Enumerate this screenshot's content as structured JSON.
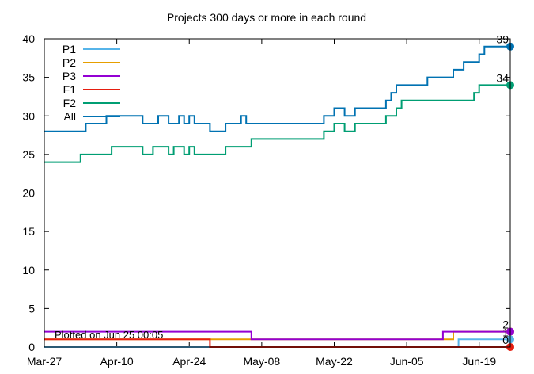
{
  "chart_data": {
    "type": "line",
    "title": "Projects 300 days or more in each round",
    "footnote": "Plotted on Jun 25 00:05",
    "x_start": "Mar-27",
    "x_end": "Jun-25",
    "x_ticks": [
      "Mar-27",
      "Apr-10",
      "Apr-24",
      "May-08",
      "May-22",
      "Jun-05",
      "Jun-19"
    ],
    "ylim": [
      0,
      40
    ],
    "y_ticks": [
      0,
      5,
      10,
      15,
      20,
      25,
      30,
      35,
      40
    ],
    "step": true,
    "legend_position": "top-left",
    "series": [
      {
        "name": "P1",
        "color": "#56b4e9",
        "end_label": "1",
        "points": [
          [
            "Mar-27",
            0
          ],
          [
            "Jun-15",
            1
          ],
          [
            "Jun-25",
            1
          ]
        ]
      },
      {
        "name": "P2",
        "color": "#e69f00",
        "end_label": "",
        "points": [
          [
            "Mar-27",
            1
          ],
          [
            "Apr-28",
            1
          ],
          [
            "Jun-14",
            2
          ],
          [
            "Jun-25",
            2
          ]
        ]
      },
      {
        "name": "P3",
        "color": "#9400d3",
        "end_label": "2",
        "points": [
          [
            "Mar-27",
            2
          ],
          [
            "May-06",
            1
          ],
          [
            "Jun-12",
            2
          ],
          [
            "Jun-25",
            2
          ]
        ]
      },
      {
        "name": "F1",
        "color": "#e51e10",
        "end_label": "0",
        "points": [
          [
            "Mar-27",
            1
          ],
          [
            "Apr-28",
            0
          ],
          [
            "Jun-25",
            0
          ]
        ]
      },
      {
        "name": "F2",
        "color": "#009e73",
        "end_label": "34",
        "points": [
          [
            "Mar-27",
            24
          ],
          [
            "Apr-03",
            25
          ],
          [
            "Apr-09",
            26
          ],
          [
            "Apr-15",
            25
          ],
          [
            "Apr-17",
            26
          ],
          [
            "Apr-20",
            25
          ],
          [
            "Apr-21",
            26
          ],
          [
            "Apr-23",
            25
          ],
          [
            "Apr-24",
            26
          ],
          [
            "Apr-25",
            25
          ],
          [
            "May-01",
            26
          ],
          [
            "May-06",
            27
          ],
          [
            "May-20",
            28
          ],
          [
            "May-22",
            29
          ],
          [
            "May-24",
            28
          ],
          [
            "May-26",
            29
          ],
          [
            "Jun-01",
            30
          ],
          [
            "Jun-03",
            31
          ],
          [
            "Jun-04",
            32
          ],
          [
            "Jun-18",
            33
          ],
          [
            "Jun-19",
            34
          ],
          [
            "Jun-25",
            34
          ]
        ]
      },
      {
        "name": "All",
        "color": "#0072b2",
        "end_label": "39",
        "points": [
          [
            "Mar-27",
            28
          ],
          [
            "Apr-04",
            29
          ],
          [
            "Apr-08",
            30
          ],
          [
            "Apr-15",
            29
          ],
          [
            "Apr-18",
            30
          ],
          [
            "Apr-20",
            29
          ],
          [
            "Apr-22",
            30
          ],
          [
            "Apr-23",
            29
          ],
          [
            "Apr-24",
            30
          ],
          [
            "Apr-25",
            29
          ],
          [
            "Apr-28",
            28
          ],
          [
            "May-01",
            29
          ],
          [
            "May-04",
            30
          ],
          [
            "May-05",
            29
          ],
          [
            "May-20",
            30
          ],
          [
            "May-22",
            31
          ],
          [
            "May-24",
            30
          ],
          [
            "May-26",
            31
          ],
          [
            "Jun-01",
            32
          ],
          [
            "Jun-02",
            33
          ],
          [
            "Jun-03",
            34
          ],
          [
            "Jun-09",
            35
          ],
          [
            "Jun-12",
            35
          ],
          [
            "Jun-14",
            36
          ],
          [
            "Jun-16",
            37
          ],
          [
            "Jun-19",
            38
          ],
          [
            "Jun-20",
            39
          ],
          [
            "Jun-25",
            39
          ]
        ]
      }
    ]
  }
}
